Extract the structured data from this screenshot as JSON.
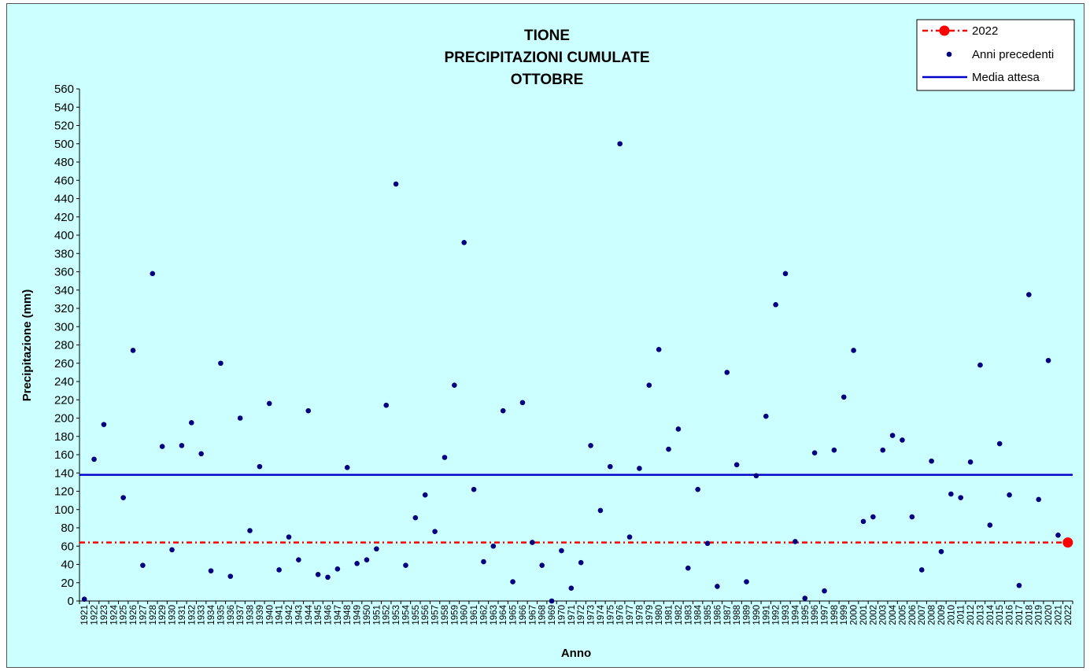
{
  "chart_data": {
    "type": "scatter",
    "title_lines": [
      "TIONE",
      "PRECIPITAZIONI CUMULATE",
      "OTTOBRE"
    ],
    "xlabel": "Anno",
    "ylabel": "Precipitazione (mm)",
    "ylim": [
      0,
      560
    ],
    "y_ticks": [
      0,
      20,
      40,
      60,
      80,
      100,
      120,
      140,
      160,
      180,
      200,
      220,
      240,
      260,
      280,
      300,
      320,
      340,
      360,
      380,
      400,
      420,
      440,
      460,
      480,
      500,
      520,
      540,
      560
    ],
    "x_categories": [
      "1921",
      "1922",
      "1923",
      "1924",
      "1925",
      "1926",
      "1927",
      "1928",
      "1929",
      "1930",
      "1931",
      "1932",
      "1933",
      "1934",
      "1935",
      "1936",
      "1937",
      "1938",
      "1939",
      "1940",
      "1941",
      "1942",
      "1943",
      "1944",
      "1945",
      "1946",
      "1947",
      "1948",
      "1949",
      "1950",
      "1951",
      "1952",
      "1953",
      "1954",
      "1955",
      "1956",
      "1957",
      "1958",
      "1959",
      "1960",
      "1961",
      "1962",
      "1963",
      "1964",
      "1965",
      "1966",
      "1967",
      "1968",
      "1969",
      "1970",
      "1971",
      "1972",
      "1973",
      "1974",
      "1975",
      "1976",
      "1977",
      "1978",
      "1979",
      "1980",
      "1981",
      "1982",
      "1983",
      "1984",
      "1985",
      "1986",
      "1987",
      "1988",
      "1989",
      "1990",
      "1991",
      "1992",
      "1993",
      "1994",
      "1995",
      "1996",
      "1997",
      "1998",
      "1999",
      "2000",
      "2001",
      "2002",
      "2003",
      "2004",
      "2005",
      "2006",
      "2007",
      "2008",
      "2009",
      "2010",
      "2011",
      "2012",
      "2013",
      "2014",
      "2015",
      "2016",
      "2017",
      "2018",
      "2019",
      "2020",
      "2021",
      "2022"
    ],
    "legend_position": "top-right",
    "grid": false,
    "series": [
      {
        "name": "Anni precedenti",
        "marker": "dot",
        "color": "#000080",
        "points": [
          {
            "x": "1921",
            "y": 2
          },
          {
            "x": "1922",
            "y": 155
          },
          {
            "x": "1923",
            "y": 193
          },
          {
            "x": "1925",
            "y": 113
          },
          {
            "x": "1926",
            "y": 274
          },
          {
            "x": "1927",
            "y": 39
          },
          {
            "x": "1928",
            "y": 358
          },
          {
            "x": "1929",
            "y": 169
          },
          {
            "x": "1930",
            "y": 56
          },
          {
            "x": "1931",
            "y": 170
          },
          {
            "x": "1932",
            "y": 195
          },
          {
            "x": "1933",
            "y": 161
          },
          {
            "x": "1934",
            "y": 33
          },
          {
            "x": "1935",
            "y": 260
          },
          {
            "x": "1936",
            "y": 27
          },
          {
            "x": "1937",
            "y": 200
          },
          {
            "x": "1938",
            "y": 77
          },
          {
            "x": "1939",
            "y": 147
          },
          {
            "x": "1940",
            "y": 216
          },
          {
            "x": "1941",
            "y": 34
          },
          {
            "x": "1942",
            "y": 70
          },
          {
            "x": "1943",
            "y": 45
          },
          {
            "x": "1944",
            "y": 208
          },
          {
            "x": "1945",
            "y": 29
          },
          {
            "x": "1946",
            "y": 26
          },
          {
            "x": "1947",
            "y": 35
          },
          {
            "x": "1948",
            "y": 146
          },
          {
            "x": "1949",
            "y": 41
          },
          {
            "x": "1950",
            "y": 45
          },
          {
            "x": "1951",
            "y": 57
          },
          {
            "x": "1952",
            "y": 214
          },
          {
            "x": "1953",
            "y": 456
          },
          {
            "x": "1954",
            "y": 39
          },
          {
            "x": "1955",
            "y": 91
          },
          {
            "x": "1956",
            "y": 116
          },
          {
            "x": "1957",
            "y": 76
          },
          {
            "x": "1958",
            "y": 157
          },
          {
            "x": "1959",
            "y": 236
          },
          {
            "x": "1960",
            "y": 392
          },
          {
            "x": "1961",
            "y": 122
          },
          {
            "x": "1962",
            "y": 43
          },
          {
            "x": "1963",
            "y": 60
          },
          {
            "x": "1964",
            "y": 208
          },
          {
            "x": "1965",
            "y": 21
          },
          {
            "x": "1966",
            "y": 217
          },
          {
            "x": "1967",
            "y": 64
          },
          {
            "x": "1968",
            "y": 39
          },
          {
            "x": "1969",
            "y": 0
          },
          {
            "x": "1970",
            "y": 55
          },
          {
            "x": "1971",
            "y": 14
          },
          {
            "x": "1972",
            "y": 42
          },
          {
            "x": "1973",
            "y": 170
          },
          {
            "x": "1974",
            "y": 99
          },
          {
            "x": "1975",
            "y": 147
          },
          {
            "x": "1976",
            "y": 500
          },
          {
            "x": "1977",
            "y": 70
          },
          {
            "x": "1978",
            "y": 145
          },
          {
            "x": "1979",
            "y": 236
          },
          {
            "x": "1980",
            "y": 275
          },
          {
            "x": "1981",
            "y": 166
          },
          {
            "x": "1982",
            "y": 188
          },
          {
            "x": "1983",
            "y": 36
          },
          {
            "x": "1984",
            "y": 122
          },
          {
            "x": "1985",
            "y": 63
          },
          {
            "x": "1986",
            "y": 16
          },
          {
            "x": "1987",
            "y": 250
          },
          {
            "x": "1988",
            "y": 149
          },
          {
            "x": "1989",
            "y": 21
          },
          {
            "x": "1990",
            "y": 137
          },
          {
            "x": "1991",
            "y": 202
          },
          {
            "x": "1992",
            "y": 324
          },
          {
            "x": "1993",
            "y": 358
          },
          {
            "x": "1994",
            "y": 65
          },
          {
            "x": "1995",
            "y": 3
          },
          {
            "x": "1996",
            "y": 162
          },
          {
            "x": "1997",
            "y": 11
          },
          {
            "x": "1998",
            "y": 165
          },
          {
            "x": "1999",
            "y": 223
          },
          {
            "x": "2000",
            "y": 274
          },
          {
            "x": "2001",
            "y": 87
          },
          {
            "x": "2002",
            "y": 92
          },
          {
            "x": "2003",
            "y": 165
          },
          {
            "x": "2004",
            "y": 181
          },
          {
            "x": "2005",
            "y": 176
          },
          {
            "x": "2006",
            "y": 92
          },
          {
            "x": "2007",
            "y": 34
          },
          {
            "x": "2008",
            "y": 153
          },
          {
            "x": "2009",
            "y": 54
          },
          {
            "x": "2010",
            "y": 117
          },
          {
            "x": "2011",
            "y": 113
          },
          {
            "x": "2012",
            "y": 152
          },
          {
            "x": "2013",
            "y": 258
          },
          {
            "x": "2014",
            "y": 83
          },
          {
            "x": "2015",
            "y": 172
          },
          {
            "x": "2016",
            "y": 116
          },
          {
            "x": "2017",
            "y": 17
          },
          {
            "x": "2018",
            "y": 335
          },
          {
            "x": "2019",
            "y": 111
          },
          {
            "x": "2020",
            "y": 263
          },
          {
            "x": "2021",
            "y": 72
          }
        ]
      },
      {
        "name": "2022",
        "marker": "large-dot",
        "color": "#ff0000",
        "line_style": "dash-dot",
        "points": [
          {
            "x": "2022",
            "y": 64
          }
        ],
        "reference_y": 64
      },
      {
        "name": "Media attesa",
        "type": "hline",
        "color": "#0000cc",
        "y": 138
      }
    ]
  }
}
